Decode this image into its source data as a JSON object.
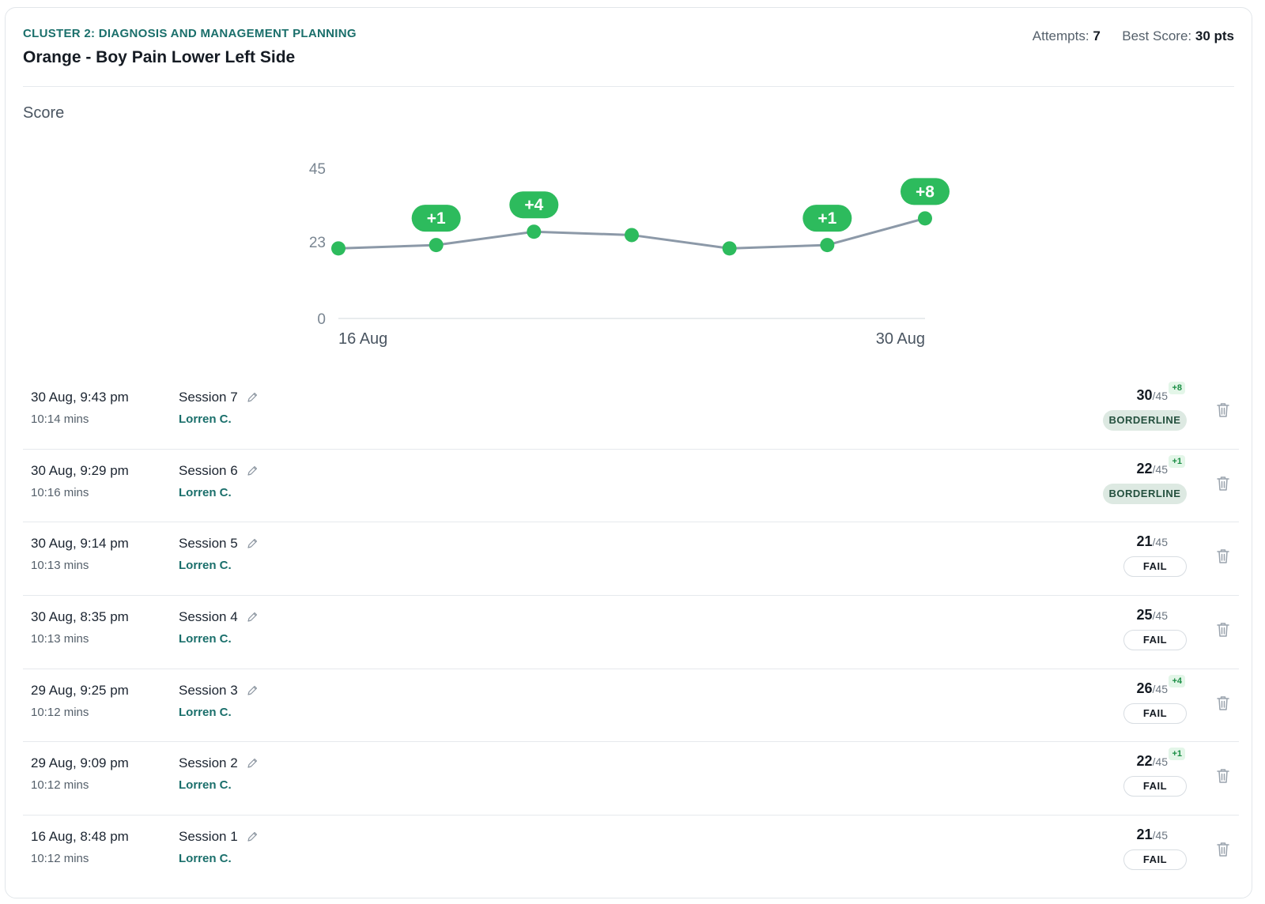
{
  "header": {
    "cluster": "CLUSTER 2: DIAGNOSIS AND MANAGEMENT PLANNING",
    "title": "Orange - Boy Pain Lower Left Side",
    "attempts_label": "Attempts:",
    "attempts_value": "7",
    "best_label": "Best Score:",
    "best_value": "30 pts"
  },
  "score_section_label": "Score",
  "chart_data": {
    "type": "line",
    "title": "",
    "xlabel": "",
    "ylabel": "",
    "ylim": [
      0,
      45
    ],
    "yticks": [
      "0",
      "23",
      "45"
    ],
    "x_labels": [
      "16 Aug",
      "30 Aug"
    ],
    "series": [
      {
        "values": [
          21,
          22,
          26,
          25,
          21,
          22,
          30
        ]
      }
    ],
    "improvements": [
      "",
      "+1",
      "+4",
      "",
      "",
      "+1",
      "+8"
    ],
    "line_color": "#8c99a8",
    "point_color": "#2dbb5d"
  },
  "sessions": [
    {
      "date": "30 Aug, 9:43 pm",
      "duration": "10:14 mins",
      "name": "Session 7",
      "user": "Lorren C.",
      "score": "30",
      "max": "/45",
      "delta": "+8",
      "status": "BORDERLINE"
    },
    {
      "date": "30 Aug, 9:29 pm",
      "duration": "10:16 mins",
      "name": "Session 6",
      "user": "Lorren C.",
      "score": "22",
      "max": "/45",
      "delta": "+1",
      "status": "BORDERLINE"
    },
    {
      "date": "30 Aug, 9:14 pm",
      "duration": "10:13 mins",
      "name": "Session 5",
      "user": "Lorren C.",
      "score": "21",
      "max": "/45",
      "delta": "",
      "status": "FAIL"
    },
    {
      "date": "30 Aug, 8:35 pm",
      "duration": "10:13 mins",
      "name": "Session 4",
      "user": "Lorren C.",
      "score": "25",
      "max": "/45",
      "delta": "",
      "status": "FAIL"
    },
    {
      "date": "29 Aug, 9:25 pm",
      "duration": "10:12 mins",
      "name": "Session 3",
      "user": "Lorren C.",
      "score": "26",
      "max": "/45",
      "delta": "+4",
      "status": "FAIL"
    },
    {
      "date": "29 Aug, 9:09 pm",
      "duration": "10:12 mins",
      "name": "Session 2",
      "user": "Lorren C.",
      "score": "22",
      "max": "/45",
      "delta": "+1",
      "status": "FAIL"
    },
    {
      "date": "16 Aug, 8:48 pm",
      "duration": "10:12 mins",
      "name": "Session 1",
      "user": "Lorren C.",
      "score": "21",
      "max": "/45",
      "delta": "",
      "status": "FAIL"
    }
  ],
  "icons": {
    "edit": "pencil-icon",
    "delete": "trash-icon"
  }
}
